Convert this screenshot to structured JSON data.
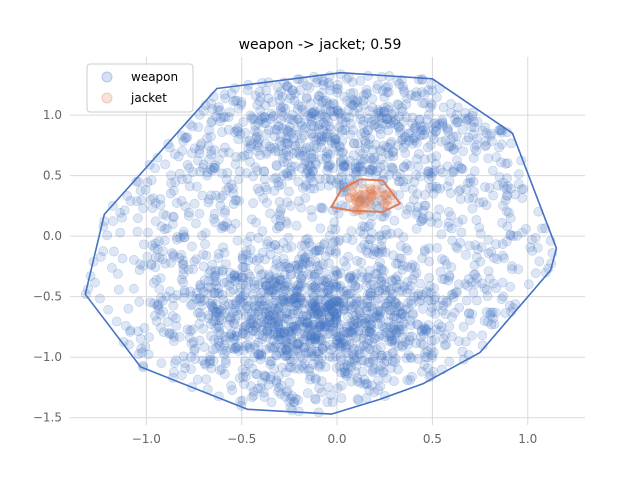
{
  "chart_data": {
    "type": "scatter",
    "title": "weapon -> jacket; 0.59",
    "xlabel": "",
    "ylabel": "",
    "xlim": [
      -1.4,
      1.3
    ],
    "ylim": [
      -1.56,
      1.48
    ],
    "x_ticks": [
      -1.0,
      -0.5,
      0.0,
      0.5,
      1.0
    ],
    "x_tick_labels": [
      "−1.0",
      "−0.5",
      "0.0",
      "0.5",
      "1.0"
    ],
    "y_ticks": [
      -1.5,
      -1.0,
      -0.5,
      0.0,
      0.5,
      1.0
    ],
    "y_tick_labels": [
      "−1.5",
      "−1.0",
      "−0.5",
      "0.0",
      "0.5",
      "1.0"
    ],
    "grid": true,
    "legend_position": "top-left",
    "series": [
      {
        "name": "weapon",
        "color": "#4472c4",
        "point_count_estimate": 5000,
        "hull": [
          [
            -1.32,
            -0.48
          ],
          [
            -1.22,
            0.18
          ],
          [
            -0.63,
            1.22
          ],
          [
            0.02,
            1.35
          ],
          [
            0.5,
            1.3
          ],
          [
            0.92,
            0.85
          ],
          [
            1.15,
            -0.1
          ],
          [
            1.12,
            -0.28
          ],
          [
            0.75,
            -0.96
          ],
          [
            0.45,
            -1.22
          ],
          [
            0.22,
            -1.35
          ],
          [
            -0.03,
            -1.47
          ],
          [
            -0.47,
            -1.43
          ],
          [
            -1.03,
            -1.08
          ]
        ]
      },
      {
        "name": "jacket",
        "color": "#e07b54",
        "point_count_estimate": 60,
        "hull": [
          [
            -0.03,
            0.24
          ],
          [
            0.02,
            0.38
          ],
          [
            0.12,
            0.47
          ],
          [
            0.24,
            0.46
          ],
          [
            0.33,
            0.27
          ],
          [
            0.24,
            0.2
          ],
          [
            0.08,
            0.21
          ]
        ]
      }
    ]
  }
}
